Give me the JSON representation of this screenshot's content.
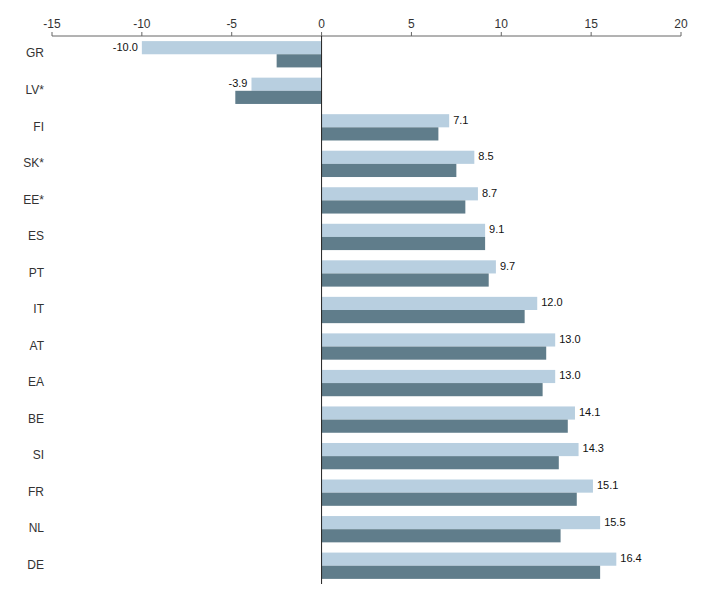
{
  "chart_data": {
    "type": "bar",
    "orientation": "horizontal",
    "categories": [
      "GR",
      "LV*",
      "FI",
      "SK*",
      "EE*",
      "ES",
      "PT",
      "IT",
      "AT",
      "EA",
      "BE",
      "SI",
      "FR",
      "NL",
      "DE"
    ],
    "series": [
      {
        "color": "#b8cfe0",
        "data_labels": true,
        "values": [
          -10.0,
          -3.9,
          7.1,
          8.5,
          8.7,
          9.1,
          9.7,
          12.0,
          13.0,
          13.0,
          14.1,
          14.3,
          15.1,
          15.5,
          16.4
        ],
        "value_labels": [
          "-10.0",
          "-3.9",
          "7.1",
          "8.5",
          "8.7",
          "9.1",
          "9.7",
          "12.0",
          "13.0",
          "13.0",
          "14.1",
          "14.3",
          "15.1",
          "15.5",
          "16.4"
        ]
      },
      {
        "color": "#607d8b",
        "values": [
          -2.5,
          -4.8,
          6.5,
          7.5,
          8.0,
          9.1,
          9.3,
          11.3,
          12.5,
          12.3,
          13.7,
          13.2,
          14.2,
          13.3,
          15.5
        ]
      }
    ],
    "xlim": [
      -15,
      20
    ],
    "xticks": [
      -15,
      -10,
      -5,
      0,
      5,
      10,
      15,
      20
    ],
    "grid": false
  }
}
